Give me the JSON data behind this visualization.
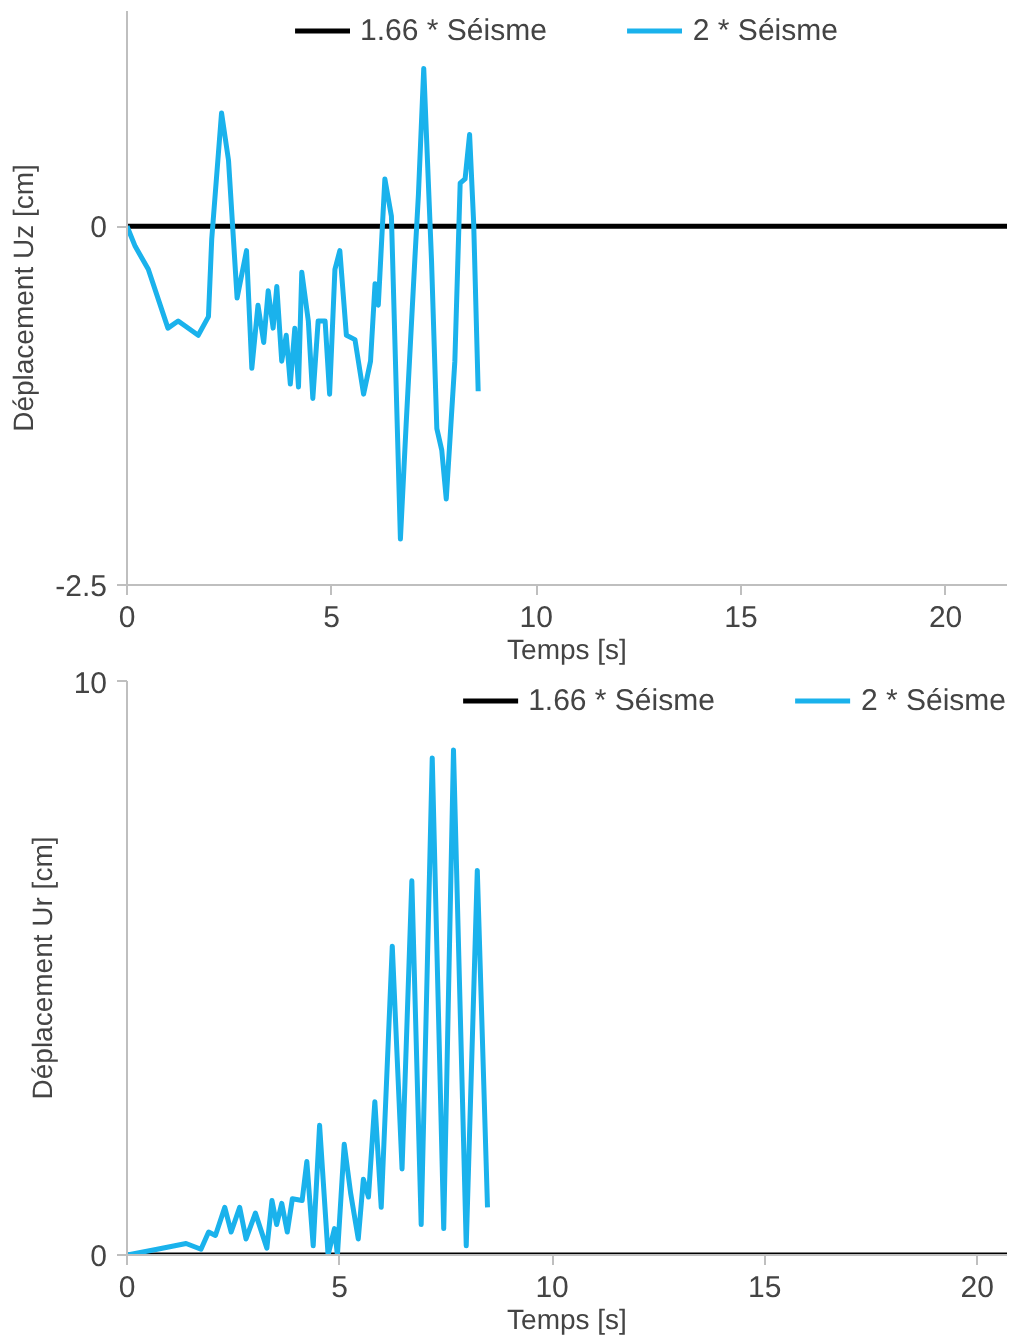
{
  "chart_data": [
    {
      "type": "line",
      "xlabel": "Temps [s]",
      "ylabel": "Déplacement Uz [cm]",
      "xlim": [
        0,
        21.5
      ],
      "ylim": [
        -2.5,
        1.5
      ],
      "xticks": [
        0,
        5,
        10,
        15,
        20
      ],
      "yticks": [
        -2.5,
        0
      ],
      "grid": false,
      "legend": "top",
      "marker": "none",
      "line_style": "solid",
      "series": [
        {
          "name": "1.66 * Séisme",
          "color": "#000000",
          "x": [
            0,
            21.5
          ],
          "values": [
            0,
            0
          ]
        },
        {
          "name": "2 * Séisme",
          "color": "#1ab2ec",
          "x": [
            0,
            0.2,
            0.52,
            1.0,
            1.25,
            1.74,
            1.99,
            2.07,
            2.31,
            2.48,
            2.69,
            2.92,
            3.05,
            3.2,
            3.34,
            3.45,
            3.57,
            3.66,
            3.78,
            3.89,
            3.99,
            4.1,
            4.19,
            4.27,
            4.43,
            4.54,
            4.67,
            4.84,
            4.95,
            5.08,
            5.2,
            5.36,
            5.57,
            5.78,
            5.95,
            6.06,
            6.14,
            6.3,
            6.46,
            6.68,
            6.82,
            7.04,
            7.12,
            7.25,
            7.44,
            7.57,
            7.69,
            7.8,
            8.01,
            8.14,
            8.26,
            8.37,
            8.47,
            8.58
          ],
          "values": [
            0,
            -0.14,
            -0.3,
            -0.71,
            -0.66,
            -0.76,
            -0.63,
            -0.09,
            0.79,
            0.46,
            -0.5,
            -0.17,
            -0.99,
            -0.55,
            -0.81,
            -0.45,
            -0.71,
            -0.42,
            -0.94,
            -0.76,
            -1.1,
            -0.71,
            -1.12,
            -0.32,
            -0.66,
            -1.2,
            -0.66,
            -0.66,
            -1.17,
            -0.3,
            -0.17,
            -0.76,
            -0.79,
            -1.17,
            -0.94,
            -0.4,
            -0.55,
            0.33,
            0.07,
            -2.18,
            -1.38,
            -0.19,
            0.22,
            1.1,
            -0.24,
            -1.41,
            -1.56,
            -1.9,
            -0.94,
            0.3,
            0.33,
            0.64,
            0.02,
            -1.15
          ]
        }
      ]
    },
    {
      "type": "line",
      "xlabel": "Temps [s]",
      "ylabel": "Déplacement Ur [cm]",
      "xlim": [
        0,
        20.7
      ],
      "ylim": [
        0,
        10
      ],
      "xticks": [
        0,
        5,
        10,
        15,
        20
      ],
      "yticks": [
        0,
        10
      ],
      "grid": false,
      "legend": "top right",
      "marker": "none",
      "line_style": "solid",
      "series": [
        {
          "name": "1.66 * Séisme",
          "color": "#000000",
          "x": [
            0,
            20.7
          ],
          "values": [
            0,
            0
          ]
        },
        {
          "name": "2 * Séisme",
          "color": "#1ab2ec",
          "x": [
            0,
            0.71,
            1.39,
            1.74,
            1.92,
            2.08,
            2.3,
            2.45,
            2.65,
            2.8,
            3.02,
            3.29,
            3.41,
            3.52,
            3.64,
            3.77,
            3.89,
            4.12,
            4.23,
            4.38,
            4.53,
            4.73,
            4.88,
            4.95,
            5.11,
            5.26,
            5.44,
            5.56,
            5.68,
            5.83,
            5.98,
            6.24,
            6.47,
            6.7,
            6.92,
            7.18,
            7.45,
            7.68,
            7.98,
            8.24,
            8.48
          ],
          "values": [
            0,
            0.1,
            0.2,
            0.1,
            0.4,
            0.34,
            0.83,
            0.4,
            0.83,
            0.28,
            0.73,
            0.12,
            0.95,
            0.53,
            0.9,
            0.4,
            0.98,
            0.95,
            1.63,
            0.16,
            2.26,
            0,
            0.46,
            0,
            1.93,
            1.08,
            0.28,
            1.32,
            1.01,
            2.67,
            0.83,
            5.38,
            1.5,
            6.52,
            0.53,
            8.66,
            0.46,
            8.8,
            0.16,
            6.7,
            0.83
          ]
        }
      ]
    }
  ]
}
